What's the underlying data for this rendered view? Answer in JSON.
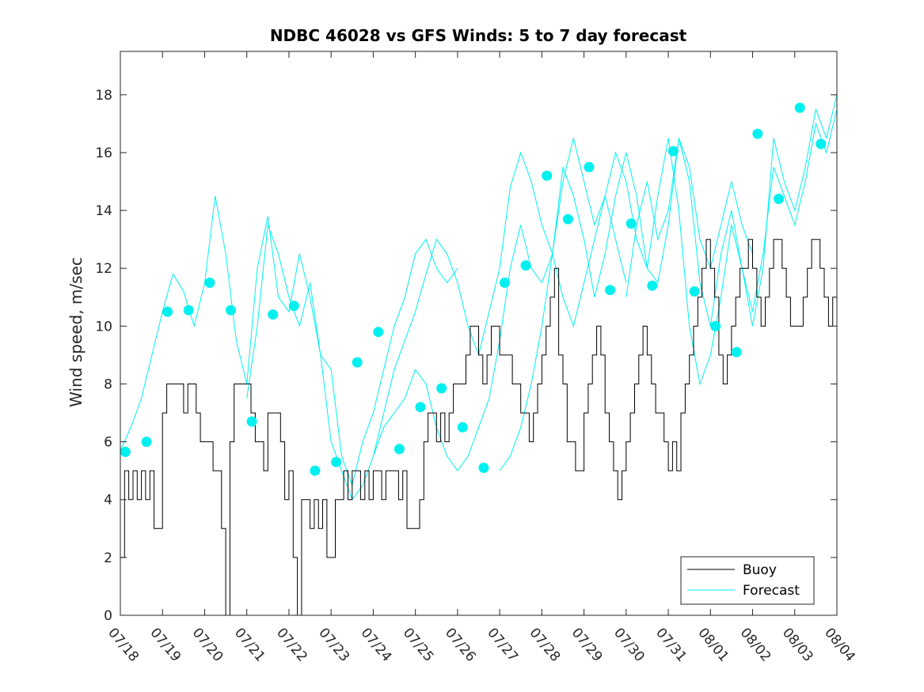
{
  "chart_data": {
    "type": "line",
    "title": "NDBC 46028 vs GFS Winds: 5 to 7 day forecast",
    "ylabel": "Wind speed, m/sec",
    "xlabel": "",
    "ylim": [
      0,
      19.5
    ],
    "yticks": [
      0,
      2,
      4,
      6,
      8,
      10,
      12,
      14,
      16,
      18
    ],
    "xlim": [
      0,
      17
    ],
    "xtick_labels": [
      "07/18",
      "07/19",
      "07/20",
      "07/21",
      "07/22",
      "07/23",
      "07/24",
      "07/25",
      "07/26",
      "07/27",
      "07/28",
      "07/29",
      "07/30",
      "07/31",
      "08/01",
      "08/02",
      "08/03",
      "08/04"
    ],
    "grid": false,
    "legend": {
      "placement": "bottom-right",
      "entries": [
        {
          "name": "Buoy",
          "color": "#000000"
        },
        {
          "name": "Forecast",
          "color": "#00f0f0"
        }
      ]
    },
    "series": [
      {
        "name": "Buoy",
        "color": "#000000",
        "x": [
          0.0,
          0.1,
          0.2,
          0.3,
          0.4,
          0.5,
          0.6,
          0.7,
          0.8,
          0.9,
          1.0,
          1.1,
          1.2,
          1.3,
          1.4,
          1.5,
          1.6,
          1.7,
          1.8,
          1.9,
          2.0,
          2.1,
          2.2,
          2.3,
          2.4,
          2.5,
          2.6,
          2.7,
          2.8,
          2.9,
          3.0,
          3.1,
          3.2,
          3.3,
          3.4,
          3.5,
          3.6,
          3.7,
          3.8,
          3.9,
          4.0,
          4.1,
          4.2,
          4.3,
          4.4,
          4.5,
          4.6,
          4.7,
          4.8,
          4.9,
          5.0,
          5.1,
          5.2,
          5.3,
          5.4,
          5.5,
          5.6,
          5.7,
          5.8,
          5.9,
          6.0,
          6.1,
          6.2,
          6.3,
          6.4,
          6.5,
          6.6,
          6.7,
          6.8,
          6.9,
          7.0,
          7.1,
          7.2,
          7.3,
          7.4,
          7.5,
          7.6,
          7.7,
          7.8,
          7.9,
          8.0,
          8.1,
          8.2,
          8.3,
          8.4,
          8.5,
          8.6,
          8.7,
          8.8,
          8.9,
          9.0,
          9.1,
          9.2,
          9.3,
          9.4,
          9.5,
          9.6,
          9.7,
          9.8,
          9.9,
          10.0,
          10.1,
          10.2,
          10.3,
          10.4,
          10.5,
          10.6,
          10.7,
          10.8,
          10.9,
          11.0,
          11.1,
          11.2,
          11.3,
          11.4,
          11.5,
          11.6,
          11.7,
          11.8,
          11.9,
          12.0,
          12.1,
          12.2,
          12.3,
          12.4,
          12.5,
          12.6,
          12.7,
          12.8,
          12.9,
          13.0,
          13.1,
          13.2,
          13.3,
          13.4,
          13.5,
          13.6,
          13.7,
          13.8,
          13.9,
          14.0,
          14.1,
          14.2,
          14.3,
          14.4,
          14.5,
          14.6,
          14.7,
          14.8,
          14.9,
          15.0,
          15.1,
          15.2,
          15.3,
          15.4,
          15.5,
          15.6,
          15.7,
          15.8,
          15.9,
          16.0,
          16.1,
          16.2,
          16.3,
          16.4,
          16.5,
          16.6,
          16.7,
          16.8,
          16.9,
          17.0
        ],
        "y": [
          2,
          5,
          4,
          5,
          4,
          5,
          4,
          5,
          3,
          3,
          7,
          8,
          8,
          8,
          8,
          7,
          8,
          8,
          7,
          6,
          6,
          6,
          5,
          5,
          3,
          0,
          6,
          8,
          8,
          8,
          8,
          7,
          6,
          6,
          5,
          7,
          7,
          7,
          6,
          4,
          5,
          2,
          0,
          4,
          4,
          3,
          4,
          3,
          4,
          2,
          2,
          4,
          4,
          5,
          4,
          5,
          5,
          4,
          5,
          4,
          5,
          5,
          4,
          5,
          5,
          5,
          4,
          5,
          3,
          3,
          3,
          4,
          6,
          7,
          7,
          6,
          7,
          6,
          7,
          8,
          8,
          8,
          9,
          10,
          10,
          9,
          8,
          9,
          10,
          10,
          9,
          9,
          9,
          8,
          8,
          7,
          7,
          6,
          7,
          8,
          9,
          10,
          11,
          12,
          9,
          8,
          6,
          6,
          5,
          5,
          7,
          8,
          9,
          10,
          9,
          7,
          6,
          5,
          4,
          5,
          6,
          7,
          8,
          9,
          10,
          9,
          8,
          7,
          7,
          6,
          5,
          6,
          5,
          7,
          8,
          9,
          10,
          11,
          12,
          13,
          12,
          11,
          9,
          8,
          9,
          10,
          11,
          12,
          12,
          13,
          12,
          11,
          10,
          11,
          12,
          13,
          13,
          12,
          11,
          10,
          10,
          10,
          11,
          12,
          13,
          13,
          12,
          11,
          10,
          11,
          11
        ]
      },
      {
        "name": "Forecast run 1",
        "color": "#00f0f0",
        "x": [
          0.0,
          0.25,
          0.5,
          0.75,
          1.0,
          1.25,
          1.5,
          1.75,
          2.0,
          2.25,
          2.5,
          2.75,
          3.0,
          3.25,
          3.5,
          3.75,
          4.0,
          4.25,
          4.5,
          4.75,
          5.0,
          5.25,
          5.5,
          5.75,
          6.0,
          6.25,
          6.5,
          6.75,
          7.0,
          7.25,
          7.5,
          7.75,
          8.0
        ],
        "y": [
          5.7,
          6.5,
          7.5,
          9.0,
          10.5,
          11.8,
          11.2,
          10.0,
          11.5,
          14.5,
          12.5,
          9.5,
          8.0,
          12.0,
          13.8,
          11.0,
          10.5,
          12.5,
          11.0,
          9.0,
          8.5,
          5.5,
          4.5,
          6.0,
          7.0,
          8.5,
          10.0,
          11.0,
          12.5,
          13.0,
          12.0,
          11.5,
          12.0
        ]
      },
      {
        "name": "Forecast run 2",
        "color": "#00f0f0",
        "x": [
          3.0,
          3.25,
          3.5,
          3.75,
          4.0,
          4.25,
          4.5,
          4.75,
          5.0,
          5.25,
          5.5,
          5.75,
          6.0,
          6.25,
          6.5,
          6.75,
          7.0,
          7.25,
          7.5,
          7.75,
          8.0,
          8.25,
          8.5,
          8.75,
          9.0,
          9.25,
          9.5,
          9.75,
          10.0,
          10.25,
          10.5,
          10.75,
          11.0,
          11.25,
          11.5,
          11.75,
          12.0
        ],
        "y": [
          7.5,
          10.0,
          13.5,
          12.5,
          11.0,
          10.0,
          11.5,
          9.0,
          6.0,
          5.0,
          4.0,
          4.5,
          5.5,
          7.0,
          8.5,
          9.5,
          10.5,
          11.8,
          13.0,
          12.5,
          11.5,
          10.0,
          9.0,
          10.5,
          12.0,
          14.8,
          16.0,
          15.0,
          13.5,
          12.5,
          11.0,
          10.0,
          11.5,
          13.0,
          14.5,
          13.0,
          11.5
        ]
      },
      {
        "name": "Forecast run 3",
        "color": "#00f0f0",
        "x": [
          6.0,
          6.25,
          6.5,
          6.75,
          7.0,
          7.25,
          7.5,
          7.75,
          8.0,
          8.25,
          8.5,
          8.75,
          9.0,
          9.25,
          9.5,
          9.75,
          10.0,
          10.25,
          10.5,
          10.75,
          11.0,
          11.25,
          11.5,
          11.75,
          12.0,
          12.25,
          12.5,
          12.75,
          13.0,
          13.25,
          13.5,
          13.75,
          14.0,
          14.25,
          14.5,
          14.75,
          15.0
        ],
        "y": [
          5.5,
          6.5,
          7.0,
          7.5,
          8.5,
          8.0,
          6.5,
          5.5,
          5.0,
          5.5,
          6.5,
          7.5,
          9.5,
          12.0,
          13.5,
          12.0,
          11.5,
          12.5,
          15.5,
          14.5,
          13.0,
          11.0,
          12.5,
          14.5,
          16.0,
          14.5,
          12.0,
          11.5,
          13.5,
          16.5,
          15.5,
          13.0,
          12.0,
          13.5,
          15.0,
          13.5,
          12.5
        ]
      },
      {
        "name": "Forecast run 4",
        "color": "#00f0f0",
        "x": [
          9.0,
          9.25,
          9.5,
          9.75,
          10.0,
          10.25,
          10.5,
          10.75,
          11.0,
          11.25,
          11.5,
          11.75,
          12.0,
          12.25,
          12.5,
          12.75,
          13.0,
          13.25,
          13.5,
          13.75,
          14.0,
          14.25,
          14.5,
          14.75,
          15.0,
          15.25,
          15.5,
          15.75,
          16.0,
          16.25,
          16.5,
          16.75,
          17.0
        ],
        "y": [
          5.0,
          5.5,
          6.5,
          8.0,
          10.0,
          12.5,
          15.0,
          16.5,
          15.0,
          13.5,
          14.5,
          16.0,
          15.0,
          13.0,
          12.0,
          14.5,
          16.5,
          14.0,
          10.0,
          8.0,
          9.0,
          11.0,
          13.5,
          12.0,
          10.5,
          12.5,
          15.5,
          14.5,
          13.5,
          15.0,
          17.0,
          16.0,
          17.5
        ]
      },
      {
        "name": "Forecast run 5",
        "color": "#00f0f0",
        "x": [
          12.0,
          12.25,
          12.5,
          12.75,
          13.0,
          13.25,
          13.5,
          13.75,
          14.0,
          14.25,
          14.5,
          14.75,
          15.0,
          15.25,
          15.5,
          15.75,
          16.0,
          16.25,
          16.5,
          16.75,
          17.0
        ],
        "y": [
          11.0,
          13.5,
          15.0,
          13.0,
          14.0,
          16.5,
          15.0,
          11.5,
          10.0,
          12.5,
          14.0,
          12.0,
          10.0,
          12.0,
          16.5,
          15.0,
          14.0,
          15.5,
          17.5,
          16.5,
          18.0
        ]
      }
    ],
    "markers": {
      "name": "Forecast markers",
      "color": "#00f0f0",
      "x": [
        0.12,
        0.62,
        1.12,
        1.62,
        2.12,
        2.62,
        3.12,
        3.62,
        4.12,
        4.62,
        5.12,
        5.62,
        6.12,
        6.62,
        7.12,
        7.62,
        8.12,
        8.62,
        9.12,
        9.62,
        10.12,
        10.62,
        11.12,
        11.62,
        12.12,
        12.62,
        13.12,
        13.62,
        14.12,
        14.62,
        15.12,
        15.62,
        16.12,
        16.62
      ],
      "y": [
        5.65,
        6.0,
        10.5,
        10.55,
        11.5,
        10.55,
        6.7,
        10.4,
        10.7,
        5.0,
        5.3,
        8.75,
        9.8,
        5.75,
        7.2,
        7.85,
        6.5,
        5.1,
        11.5,
        12.1,
        15.2,
        13.7,
        15.5,
        11.25,
        13.55,
        11.4,
        16.05,
        11.2,
        10.0,
        9.1,
        16.65,
        14.4,
        17.55,
        16.3
      ]
    }
  }
}
